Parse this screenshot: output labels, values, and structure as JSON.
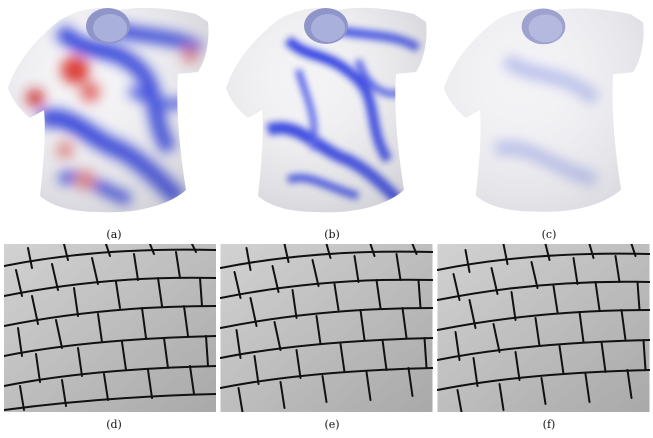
{
  "figure": {
    "captions": {
      "a": "(a)",
      "b": "(b)",
      "c": "(c)",
      "d": "(d)",
      "e": "(e)",
      "f": "(f)"
    }
  },
  "colors": {
    "shirt_base": "#f4f3f6",
    "stress_blue": "#1f2fd8",
    "stress_red": "#d9302a",
    "tile_gray": "#b8b8b8",
    "tile_line": "#111111"
  }
}
